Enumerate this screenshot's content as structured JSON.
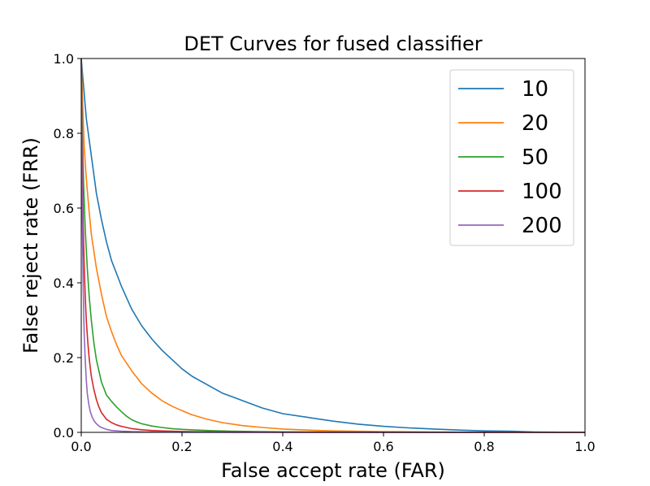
{
  "chart_data": {
    "type": "line",
    "title": "DET Curves for fused classifier",
    "xlabel": "False accept rate (FAR)",
    "ylabel": "False reject rate (FRR)",
    "xlim": [
      0,
      1
    ],
    "ylim": [
      0,
      1
    ],
    "xticks": [
      "0.0",
      "0.2",
      "0.4",
      "0.6",
      "0.8",
      "1.0"
    ],
    "yticks": [
      "0.0",
      "0.2",
      "0.4",
      "0.6",
      "0.8",
      "1.0"
    ],
    "grid": false,
    "legend_position": "top-right",
    "series": [
      {
        "name": "10",
        "color": "#1f77b4",
        "x": [
          0,
          0.005,
          0.01,
          0.015,
          0.02,
          0.025,
          0.03,
          0.04,
          0.05,
          0.06,
          0.07,
          0.08,
          0.09,
          0.1,
          0.12,
          0.14,
          0.16,
          0.18,
          0.2,
          0.22,
          0.24,
          0.26,
          0.28,
          0.3,
          0.33,
          0.36,
          0.4,
          0.45,
          0.5,
          0.55,
          0.6,
          0.65,
          0.7,
          0.75,
          0.8,
          0.85,
          0.9,
          1.0
        ],
        "y": [
          1.0,
          0.92,
          0.84,
          0.79,
          0.74,
          0.69,
          0.64,
          0.57,
          0.51,
          0.46,
          0.425,
          0.39,
          0.36,
          0.33,
          0.285,
          0.25,
          0.22,
          0.195,
          0.17,
          0.15,
          0.135,
          0.12,
          0.105,
          0.095,
          0.08,
          0.065,
          0.05,
          0.04,
          0.03,
          0.022,
          0.016,
          0.012,
          0.009,
          0.006,
          0.004,
          0.003,
          0.001,
          0.0
        ]
      },
      {
        "name": "20",
        "color": "#ff7f0e",
        "x": [
          0,
          0.003,
          0.006,
          0.01,
          0.015,
          0.02,
          0.03,
          0.04,
          0.05,
          0.06,
          0.07,
          0.08,
          0.1,
          0.12,
          0.14,
          0.16,
          0.18,
          0.2,
          0.22,
          0.25,
          0.28,
          0.32,
          0.36,
          0.4,
          0.45,
          0.5,
          0.6,
          0.7,
          0.8,
          1.0
        ],
        "y": [
          1.0,
          0.87,
          0.76,
          0.68,
          0.6,
          0.53,
          0.44,
          0.37,
          0.31,
          0.27,
          0.235,
          0.205,
          0.165,
          0.13,
          0.105,
          0.085,
          0.07,
          0.058,
          0.047,
          0.035,
          0.026,
          0.018,
          0.013,
          0.009,
          0.006,
          0.004,
          0.002,
          0.001,
          0.0005,
          0.0
        ]
      },
      {
        "name": "50",
        "color": "#2ca02c",
        "x": [
          0,
          0.002,
          0.005,
          0.008,
          0.012,
          0.016,
          0.02,
          0.025,
          0.03,
          0.04,
          0.05,
          0.06,
          0.07,
          0.08,
          0.09,
          0.1,
          0.11,
          0.12,
          0.14,
          0.16,
          0.18,
          0.2,
          0.23,
          0.26,
          0.3,
          0.35,
          0.4,
          0.5,
          0.6,
          1.0
        ],
        "y": [
          1.0,
          0.82,
          0.65,
          0.54,
          0.44,
          0.36,
          0.3,
          0.24,
          0.195,
          0.135,
          0.1,
          0.083,
          0.068,
          0.055,
          0.043,
          0.034,
          0.028,
          0.023,
          0.017,
          0.013,
          0.01,
          0.008,
          0.006,
          0.0045,
          0.003,
          0.002,
          0.0015,
          0.001,
          0.0005,
          0.0
        ]
      },
      {
        "name": "100",
        "color": "#d62728",
        "x": [
          0,
          0.002,
          0.004,
          0.006,
          0.008,
          0.01,
          0.013,
          0.016,
          0.02,
          0.025,
          0.03,
          0.035,
          0.04,
          0.05,
          0.06,
          0.07,
          0.08,
          0.1,
          0.12,
          0.14,
          0.16,
          0.2,
          0.25,
          0.3,
          0.4,
          0.5,
          1.0
        ],
        "y": [
          1.0,
          0.72,
          0.55,
          0.44,
          0.36,
          0.3,
          0.24,
          0.195,
          0.15,
          0.115,
          0.088,
          0.068,
          0.053,
          0.035,
          0.026,
          0.02,
          0.016,
          0.01,
          0.007,
          0.005,
          0.004,
          0.0025,
          0.0015,
          0.001,
          0.0005,
          0.0002,
          0.0
        ]
      },
      {
        "name": "200",
        "color": "#9467bd",
        "x": [
          0,
          0.001,
          0.002,
          0.003,
          0.004,
          0.005,
          0.006,
          0.008,
          0.01,
          0.012,
          0.015,
          0.018,
          0.022,
          0.026,
          0.03,
          0.035,
          0.04,
          0.05,
          0.06,
          0.08,
          0.1,
          0.13,
          0.16,
          0.2,
          0.3,
          0.5,
          1.0
        ],
        "y": [
          1.0,
          0.8,
          0.6,
          0.47,
          0.38,
          0.31,
          0.26,
          0.19,
          0.14,
          0.105,
          0.075,
          0.055,
          0.04,
          0.03,
          0.023,
          0.017,
          0.013,
          0.008,
          0.005,
          0.003,
          0.002,
          0.0012,
          0.0008,
          0.0005,
          0.0002,
          0.0001,
          0.0
        ]
      }
    ]
  }
}
